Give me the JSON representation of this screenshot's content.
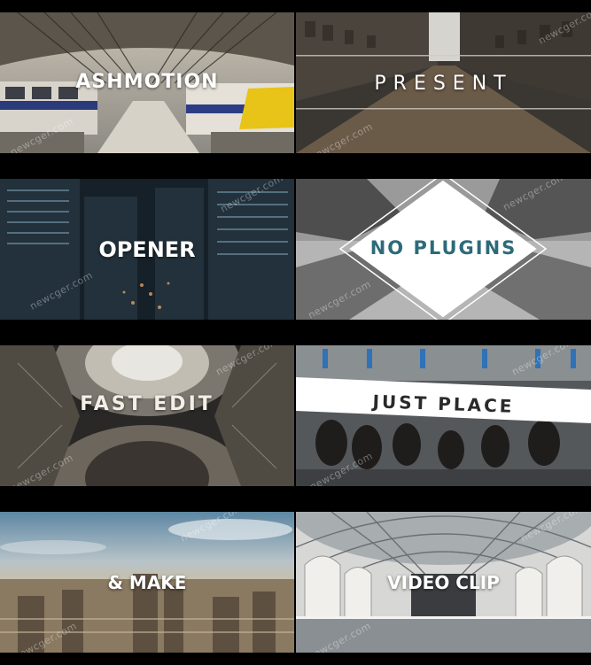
{
  "tiles": [
    {
      "title": "ASHMOTION",
      "watermark": "newcger.com"
    },
    {
      "title": "PRESENT",
      "watermark": "newcger.com"
    },
    {
      "title": "OPENER",
      "watermark": "newcger.com"
    },
    {
      "title": "NO PLUGINS",
      "watermark": "newcger.com"
    },
    {
      "title": "FAST EDIT",
      "watermark": "newcger.com"
    },
    {
      "title": "JUST PLACE",
      "watermark": "newcger.com"
    },
    {
      "title": "& MAKE",
      "watermark": "newcger.com"
    },
    {
      "title": "VIDEO CLIP",
      "watermark": "newcger.com"
    }
  ]
}
